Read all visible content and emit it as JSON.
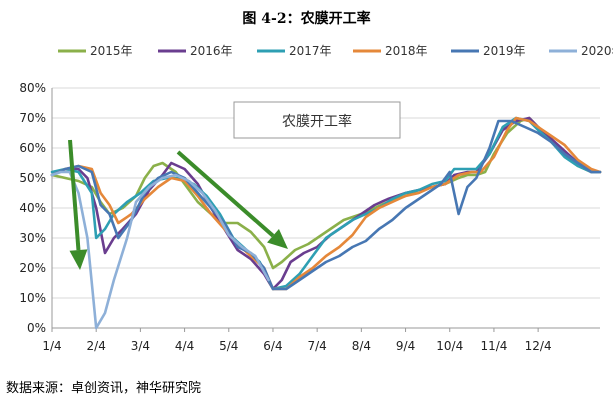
{
  "title": "图 4-2：农膜开工率",
  "source_note": "数据来源：卓创资讯，神华研究院",
  "inset_label": "农膜开工率",
  "colors": {
    "2015年": "#8bb04a",
    "2016年": "#6a3d8f",
    "2017年": "#2e9fb3",
    "2018年": "#e5883a",
    "2019年": "#4777b3",
    "2020年": "#8eb0d8",
    "arrow": "#3b8c2a",
    "grid": "#d9d9d9",
    "axis": "#999999"
  },
  "chart_data": {
    "type": "line",
    "title": "农膜开工率",
    "xlabel": "",
    "ylabel": "",
    "x_ticks": [
      "1/4",
      "2/4",
      "3/4",
      "4/4",
      "5/4",
      "6/4",
      "7/4",
      "8/4",
      "9/4",
      "10/4",
      "11/4",
      "12/4"
    ],
    "y_ticks": [
      "0%",
      "10%",
      "20%",
      "30%",
      "40%",
      "50%",
      "60%",
      "70%",
      "80%"
    ],
    "ylim": [
      0,
      80
    ],
    "xlim": [
      0,
      12.4
    ],
    "grid": "horizontal",
    "legend_position": "top",
    "x_unit_note": "x = months since Jan 4 (tick positions 0..11)",
    "series": [
      {
        "name": "2015年",
        "points": [
          [
            0,
            51
          ],
          [
            0.3,
            50
          ],
          [
            0.6,
            49
          ],
          [
            0.9,
            47
          ],
          [
            1.1,
            42
          ],
          [
            1.3,
            38
          ],
          [
            1.6,
            40
          ],
          [
            1.9,
            44
          ],
          [
            2.1,
            50
          ],
          [
            2.3,
            54
          ],
          [
            2.5,
            55
          ],
          [
            2.8,
            52
          ],
          [
            3.0,
            48
          ],
          [
            3.3,
            42
          ],
          [
            3.6,
            38
          ],
          [
            3.9,
            35
          ],
          [
            4.2,
            35
          ],
          [
            4.5,
            32
          ],
          [
            4.8,
            27
          ],
          [
            5.0,
            20
          ],
          [
            5.2,
            22
          ],
          [
            5.5,
            26
          ],
          [
            5.8,
            28
          ],
          [
            6.0,
            30
          ],
          [
            6.3,
            33
          ],
          [
            6.6,
            36
          ],
          [
            7.0,
            38
          ],
          [
            7.3,
            40
          ],
          [
            7.6,
            42
          ],
          [
            8.0,
            44
          ],
          [
            8.3,
            46
          ],
          [
            8.6,
            47
          ],
          [
            8.9,
            48
          ],
          [
            9.2,
            50
          ],
          [
            9.4,
            51
          ],
          [
            9.6,
            51
          ],
          [
            9.8,
            52
          ],
          [
            10.0,
            58
          ],
          [
            10.3,
            65
          ],
          [
            10.6,
            69
          ],
          [
            10.8,
            70
          ],
          [
            11.0,
            67
          ],
          [
            11.3,
            62
          ],
          [
            11.6,
            58
          ],
          [
            11.9,
            54
          ],
          [
            12.2,
            52
          ],
          [
            12.4,
            52
          ]
        ]
      },
      {
        "name": "2016年",
        "points": [
          [
            0,
            51
          ],
          [
            0.3,
            53
          ],
          [
            0.6,
            53
          ],
          [
            0.8,
            50
          ],
          [
            1.0,
            40
          ],
          [
            1.2,
            25
          ],
          [
            1.4,
            30
          ],
          [
            1.6,
            33
          ],
          [
            1.9,
            38
          ],
          [
            2.2,
            46
          ],
          [
            2.5,
            51
          ],
          [
            2.7,
            55
          ],
          [
            3.0,
            53
          ],
          [
            3.3,
            48
          ],
          [
            3.6,
            40
          ],
          [
            3.9,
            33
          ],
          [
            4.2,
            26
          ],
          [
            4.5,
            23
          ],
          [
            4.8,
            18
          ],
          [
            5.0,
            13
          ],
          [
            5.2,
            16
          ],
          [
            5.4,
            22
          ],
          [
            5.7,
            25
          ],
          [
            6.0,
            27
          ],
          [
            6.3,
            31
          ],
          [
            6.6,
            34
          ],
          [
            7.0,
            38
          ],
          [
            7.3,
            41
          ],
          [
            7.6,
            43
          ],
          [
            8.0,
            45
          ],
          [
            8.3,
            46
          ],
          [
            8.6,
            47
          ],
          [
            8.9,
            48
          ],
          [
            9.1,
            51
          ],
          [
            9.4,
            52
          ],
          [
            9.6,
            52
          ],
          [
            9.9,
            58
          ],
          [
            10.2,
            66
          ],
          [
            10.5,
            69
          ],
          [
            10.8,
            70
          ],
          [
            11.0,
            67
          ],
          [
            11.3,
            63
          ],
          [
            11.6,
            59
          ],
          [
            11.9,
            55
          ],
          [
            12.2,
            52
          ],
          [
            12.4,
            52
          ]
        ]
      },
      {
        "name": "2017年",
        "points": [
          [
            0,
            52
          ],
          [
            0.3,
            53
          ],
          [
            0.6,
            52
          ],
          [
            0.9,
            45
          ],
          [
            1.0,
            30
          ],
          [
            1.2,
            33
          ],
          [
            1.4,
            38
          ],
          [
            1.7,
            42
          ],
          [
            2.0,
            45
          ],
          [
            2.3,
            49
          ],
          [
            2.6,
            50
          ],
          [
            2.9,
            50
          ],
          [
            3.2,
            48
          ],
          [
            3.5,
            44
          ],
          [
            3.8,
            38
          ],
          [
            4.1,
            30
          ],
          [
            4.4,
            26
          ],
          [
            4.7,
            22
          ],
          [
            5.0,
            13
          ],
          [
            5.3,
            14
          ],
          [
            5.6,
            18
          ],
          [
            5.9,
            24
          ],
          [
            6.2,
            30
          ],
          [
            6.5,
            33
          ],
          [
            6.8,
            36
          ],
          [
            7.1,
            38
          ],
          [
            7.4,
            40
          ],
          [
            7.7,
            43
          ],
          [
            8.0,
            45
          ],
          [
            8.3,
            46
          ],
          [
            8.6,
            48
          ],
          [
            8.9,
            49
          ],
          [
            9.1,
            53
          ],
          [
            9.4,
            53
          ],
          [
            9.6,
            53
          ],
          [
            9.9,
            58
          ],
          [
            10.2,
            67
          ],
          [
            10.5,
            70
          ],
          [
            10.8,
            69
          ],
          [
            11.0,
            66
          ],
          [
            11.3,
            62
          ],
          [
            11.6,
            57
          ],
          [
            11.9,
            54
          ],
          [
            12.2,
            52
          ],
          [
            12.4,
            52
          ]
        ]
      },
      {
        "name": "2018年",
        "points": [
          [
            0,
            51
          ],
          [
            0.3,
            53
          ],
          [
            0.6,
            54
          ],
          [
            0.9,
            53
          ],
          [
            1.1,
            45
          ],
          [
            1.3,
            41
          ],
          [
            1.5,
            35
          ],
          [
            1.8,
            38
          ],
          [
            2.1,
            43
          ],
          [
            2.4,
            47
          ],
          [
            2.7,
            50
          ],
          [
            3.0,
            49
          ],
          [
            3.3,
            44
          ],
          [
            3.6,
            38
          ],
          [
            3.9,
            33
          ],
          [
            4.2,
            28
          ],
          [
            4.5,
            24
          ],
          [
            4.8,
            20
          ],
          [
            5.0,
            13
          ],
          [
            5.3,
            13
          ],
          [
            5.6,
            17
          ],
          [
            5.9,
            20
          ],
          [
            6.2,
            24
          ],
          [
            6.5,
            27
          ],
          [
            6.8,
            31
          ],
          [
            7.1,
            37
          ],
          [
            7.4,
            40
          ],
          [
            7.7,
            42
          ],
          [
            8.0,
            44
          ],
          [
            8.3,
            45
          ],
          [
            8.6,
            47
          ],
          [
            8.9,
            48
          ],
          [
            9.2,
            51
          ],
          [
            9.5,
            52
          ],
          [
            9.7,
            52
          ],
          [
            10.0,
            57
          ],
          [
            10.3,
            66
          ],
          [
            10.5,
            70
          ],
          [
            10.8,
            69
          ],
          [
            11.0,
            67
          ],
          [
            11.3,
            64
          ],
          [
            11.6,
            61
          ],
          [
            11.9,
            56
          ],
          [
            12.2,
            53
          ],
          [
            12.4,
            52
          ]
        ]
      },
      {
        "name": "2019年",
        "points": [
          [
            0,
            51
          ],
          [
            0.3,
            53
          ],
          [
            0.6,
            54
          ],
          [
            0.9,
            52
          ],
          [
            1.1,
            41
          ],
          [
            1.3,
            38
          ],
          [
            1.5,
            30
          ],
          [
            1.8,
            36
          ],
          [
            2.1,
            45
          ],
          [
            2.4,
            50
          ],
          [
            2.7,
            52
          ],
          [
            3.0,
            50
          ],
          [
            3.3,
            45
          ],
          [
            3.6,
            40
          ],
          [
            3.9,
            35
          ],
          [
            4.2,
            27
          ],
          [
            4.5,
            25
          ],
          [
            4.8,
            20
          ],
          [
            5.0,
            13
          ],
          [
            5.3,
            13
          ],
          [
            5.6,
            16
          ],
          [
            5.9,
            19
          ],
          [
            6.2,
            22
          ],
          [
            6.5,
            24
          ],
          [
            6.8,
            27
          ],
          [
            7.1,
            29
          ],
          [
            7.4,
            33
          ],
          [
            7.7,
            36
          ],
          [
            8.0,
            40
          ],
          [
            8.3,
            43
          ],
          [
            8.6,
            46
          ],
          [
            8.8,
            48
          ],
          [
            9.0,
            52
          ],
          [
            9.2,
            38
          ],
          [
            9.4,
            47
          ],
          [
            9.6,
            50
          ],
          [
            9.9,
            60
          ],
          [
            10.1,
            69
          ],
          [
            10.4,
            69
          ],
          [
            10.7,
            67
          ],
          [
            11.0,
            65
          ],
          [
            11.3,
            62
          ],
          [
            11.6,
            58
          ],
          [
            11.9,
            55
          ],
          [
            12.2,
            52
          ],
          [
            12.4,
            52
          ]
        ]
      },
      {
        "name": "2020年",
        "points": [
          [
            0,
            51
          ],
          [
            0.2,
            52
          ],
          [
            0.4,
            52
          ],
          [
            0.6,
            45
          ],
          [
            0.8,
            30
          ],
          [
            1.0,
            0
          ],
          [
            1.2,
            5
          ],
          [
            1.4,
            16
          ],
          [
            1.7,
            30
          ],
          [
            1.9,
            42
          ],
          [
            2.2,
            47
          ],
          [
            2.5,
            50
          ],
          [
            2.8,
            51
          ],
          [
            3.1,
            49
          ],
          [
            3.4,
            45
          ],
          [
            3.7,
            39
          ],
          [
            4.0,
            31
          ],
          [
            4.3,
            27
          ],
          [
            4.6,
            24
          ],
          [
            4.9,
            16
          ]
        ]
      }
    ]
  }
}
